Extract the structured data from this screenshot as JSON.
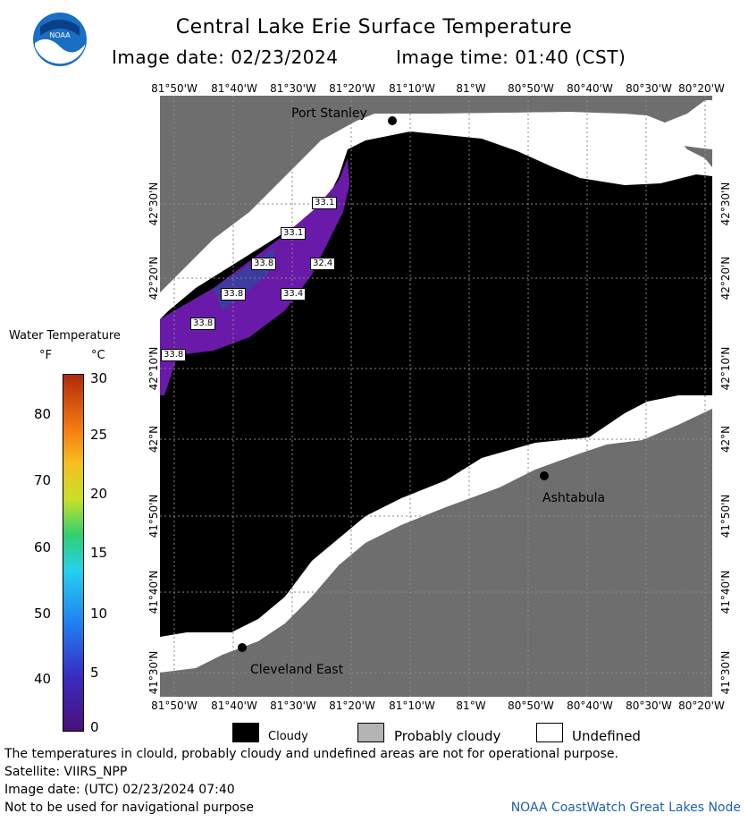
{
  "header": {
    "title": "Central Lake Erie Surface Temperature",
    "image_date_label": "Image date: 02/23/2024",
    "image_time_label": "Image time: 01:40 (CST)"
  },
  "logo": {
    "text": "NOAA"
  },
  "map": {
    "lon_ticks": [
      "81°50'W",
      "81°40'W",
      "81°30'W",
      "81°20'W",
      "81°10'W",
      "81°W",
      "80°50'W",
      "80°40'W",
      "80°30'W",
      "80°20'W"
    ],
    "lat_ticks": [
      "42°30'N",
      "42°20'N",
      "42°10'N",
      "42°N",
      "41°50'N",
      "41°40'N",
      "41°30'N"
    ],
    "places": {
      "port_stanley": "Port Stanley",
      "ashtabula": "Ashtabula",
      "cleveland_east": "Cleveland East"
    },
    "temp_labels": [
      "33.1",
      "33.1",
      "33.8",
      "32.4",
      "33.8",
      "33.4",
      "33.8",
      "33.8"
    ]
  },
  "legend": {
    "title": "Water Temperature",
    "f_header": "°F",
    "c_header": "°C",
    "f_ticks": [
      "80",
      "70",
      "60",
      "50",
      "40"
    ],
    "c_ticks": [
      "30",
      "25",
      "20",
      "15",
      "10",
      "5",
      "0"
    ],
    "colors": {
      "cloudy": "#000000",
      "probably_cloudy": "#b4b4b4",
      "undefined": "#ffffff",
      "land": "#6e6e6e",
      "warm_water": "#6a1aa8"
    },
    "key": {
      "cloudy": "Cloudy",
      "probably_cloudy": "Probably cloudy",
      "undefined": "Undefined"
    }
  },
  "footer": {
    "disclaimer": "The temperatures in clould, probably cloudy and undefined areas are not for operational purpose.",
    "satellite": "Satellite: VIIRS_NPP",
    "utc_date": "Image date: (UTC) 02/23/2024  07:40",
    "navigation": "Not to be used for navigational purpose",
    "credit": "NOAA CoastWatch Great Lakes Node"
  }
}
